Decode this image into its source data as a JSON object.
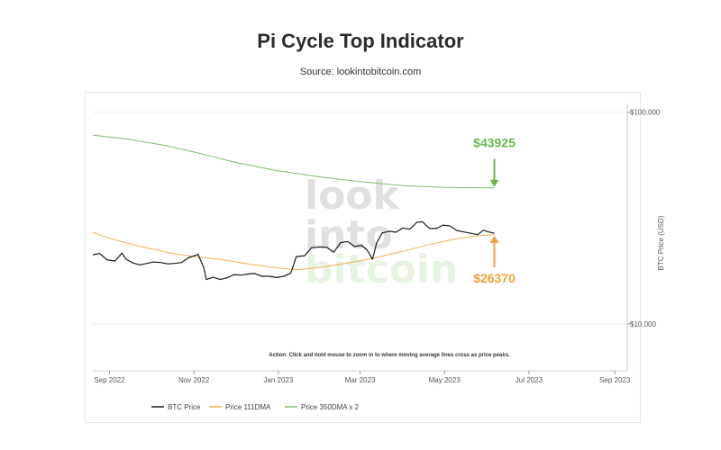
{
  "header": {
    "title": "Pi Cycle Top Indicator",
    "subtitle": "Source: lookintobitcoin.com"
  },
  "colors": {
    "btc": "#1a1a1a",
    "dma111": "#f2b04f",
    "dma350x2": "#7cbd6a",
    "annotation_green": "#6bb84f",
    "annotation_orange": "#f2a23b"
  },
  "watermark": {
    "line1": "look",
    "line2": "into",
    "line3": "bitcoin"
  },
  "action_text": "Action: Click and hold mouse to zoom in to where moving average lines cross as price peaks.",
  "chart_data": {
    "type": "line",
    "ylabel": "BTC Price (USD)",
    "yscale": "log",
    "ylim": [
      6000,
      110000
    ],
    "xlim": [
      "2022-08-20",
      "2023-09-10"
    ],
    "x_ticks": [
      {
        "date": "2022-09-01",
        "label": "Sep 2022"
      },
      {
        "date": "2022-11-01",
        "label": "Nov 2022"
      },
      {
        "date": "2023-01-01",
        "label": "Jan 2023"
      },
      {
        "date": "2023-03-01",
        "label": "Mar 2023"
      },
      {
        "date": "2023-05-01",
        "label": "May 2023"
      },
      {
        "date": "2023-07-01",
        "label": "Jul 2023"
      },
      {
        "date": "2023-09-01",
        "label": "Sep 2023"
      }
    ],
    "y_ticks": [
      {
        "value": 100000,
        "label": "$100,000"
      },
      {
        "value": 10000,
        "label": "$10,000"
      }
    ],
    "grid": "horizontal",
    "legend_position": "bottom",
    "series": [
      {
        "name": "BTC Price",
        "color": "#1a1a1a",
        "points": [
          [
            "2022-08-20",
            21200
          ],
          [
            "2022-08-25",
            21500
          ],
          [
            "2022-08-30",
            20100
          ],
          [
            "2022-09-05",
            19800
          ],
          [
            "2022-09-10",
            21600
          ],
          [
            "2022-09-13",
            20200
          ],
          [
            "2022-09-18",
            19400
          ],
          [
            "2022-09-23",
            19000
          ],
          [
            "2022-09-28",
            19300
          ],
          [
            "2022-10-03",
            19600
          ],
          [
            "2022-10-08",
            19500
          ],
          [
            "2022-10-13",
            19200
          ],
          [
            "2022-10-18",
            19300
          ],
          [
            "2022-10-23",
            19500
          ],
          [
            "2022-10-28",
            20500
          ],
          [
            "2022-11-04",
            21300
          ],
          [
            "2022-11-08",
            18500
          ],
          [
            "2022-11-10",
            16200
          ],
          [
            "2022-11-15",
            16600
          ],
          [
            "2022-11-20",
            16200
          ],
          [
            "2022-11-25",
            16500
          ],
          [
            "2022-11-30",
            17100
          ],
          [
            "2022-12-05",
            17000
          ],
          [
            "2022-12-10",
            17200
          ],
          [
            "2022-12-15",
            17300
          ],
          [
            "2022-12-20",
            16800
          ],
          [
            "2022-12-25",
            16800
          ],
          [
            "2022-12-31",
            16550
          ],
          [
            "2023-01-05",
            16800
          ],
          [
            "2023-01-10",
            17400
          ],
          [
            "2023-01-14",
            20800
          ],
          [
            "2023-01-20",
            21000
          ],
          [
            "2023-01-25",
            22900
          ],
          [
            "2023-01-31",
            23100
          ],
          [
            "2023-02-05",
            23000
          ],
          [
            "2023-02-10",
            21800
          ],
          [
            "2023-02-15",
            24200
          ],
          [
            "2023-02-20",
            24500
          ],
          [
            "2023-02-25",
            23200
          ],
          [
            "2023-03-02",
            23500
          ],
          [
            "2023-03-06",
            22400
          ],
          [
            "2023-03-10",
            20200
          ],
          [
            "2023-03-13",
            24100
          ],
          [
            "2023-03-17",
            26900
          ],
          [
            "2023-03-22",
            27400
          ],
          [
            "2023-03-27",
            27100
          ],
          [
            "2023-04-01",
            28400
          ],
          [
            "2023-04-06",
            28000
          ],
          [
            "2023-04-11",
            30200
          ],
          [
            "2023-04-15",
            30400
          ],
          [
            "2023-04-20",
            28300
          ],
          [
            "2023-04-25",
            28200
          ],
          [
            "2023-04-30",
            29300
          ],
          [
            "2023-05-05",
            29000
          ],
          [
            "2023-05-10",
            27600
          ],
          [
            "2023-05-15",
            27200
          ],
          [
            "2023-05-20",
            26800
          ],
          [
            "2023-05-25",
            26400
          ],
          [
            "2023-05-29",
            27700
          ],
          [
            "2023-06-02",
            27200
          ],
          [
            "2023-06-06",
            26800
          ]
        ]
      },
      {
        "name": "Price 111DMA",
        "color": "#f2b04f",
        "points": [
          [
            "2022-08-20",
            27000
          ],
          [
            "2022-09-01",
            25400
          ],
          [
            "2022-09-20",
            23500
          ],
          [
            "2022-10-15",
            21600
          ],
          [
            "2022-11-01",
            20800
          ],
          [
            "2022-11-20",
            20200
          ],
          [
            "2022-12-10",
            19200
          ],
          [
            "2022-12-31",
            18400
          ],
          [
            "2023-01-15",
            18000
          ],
          [
            "2023-02-01",
            18500
          ],
          [
            "2023-02-20",
            19400
          ],
          [
            "2023-03-10",
            20400
          ],
          [
            "2023-04-01",
            22000
          ],
          [
            "2023-04-20",
            23700
          ],
          [
            "2023-05-10",
            25300
          ],
          [
            "2023-05-25",
            26100
          ],
          [
            "2023-06-06",
            26370
          ]
        ]
      },
      {
        "name": "Price 350DMA x 2",
        "color": "#7cbd6a",
        "points": [
          [
            "2022-08-20",
            78000
          ],
          [
            "2022-09-15",
            74500
          ],
          [
            "2022-10-10",
            70000
          ],
          [
            "2022-11-05",
            64000
          ],
          [
            "2022-12-01",
            58000
          ],
          [
            "2022-12-31",
            53000
          ],
          [
            "2023-01-31",
            49500
          ],
          [
            "2023-03-01",
            47000
          ],
          [
            "2023-04-01",
            45000
          ],
          [
            "2023-05-01",
            44100
          ],
          [
            "2023-06-06",
            43925
          ]
        ]
      }
    ],
    "annotations": [
      {
        "text": "$43925",
        "date": "2023-06-06",
        "value": 43925,
        "color": "#6bb84f"
      },
      {
        "text": "$26370",
        "date": "2023-06-06",
        "value": 26370,
        "color": "#f2a23b"
      }
    ]
  }
}
